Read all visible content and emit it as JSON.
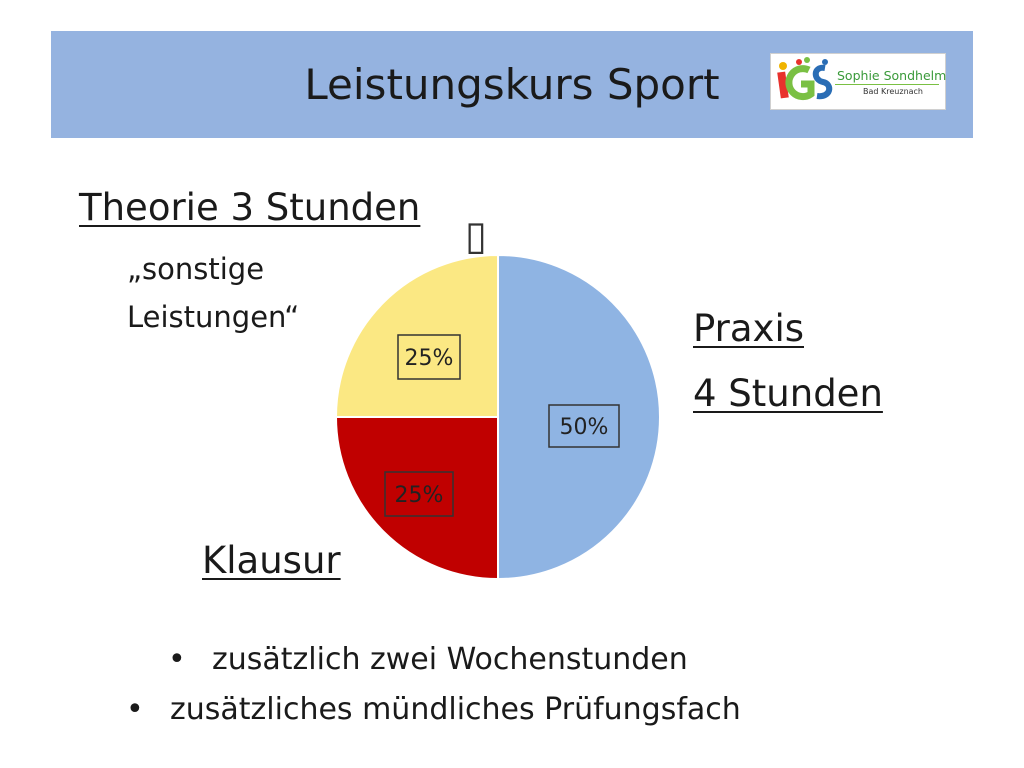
{
  "header": {
    "title": "Leistungskurs Sport"
  },
  "logo": {
    "name": "Sophie Sondhelm",
    "place": "Bad Kreuznach",
    "letters": "IGS"
  },
  "labels": {
    "theorie": "Theorie 3 Stunden",
    "sonstige_line1": "„sonstige",
    "sonstige_line2": "Leistungen“",
    "praxis_line1": "Praxis",
    "praxis_line2": "4 Stunden",
    "klausur": "Klausur",
    "placeholder_glyph": "▯"
  },
  "chart_data": {
    "type": "pie",
    "slices": [
      {
        "label": "Praxis",
        "value": 50,
        "display": "50%",
        "color": "#8fb4e3"
      },
      {
        "label": "Klausur",
        "value": 25,
        "display": "25%",
        "color": "#c00000"
      },
      {
        "label": "sonstige Leistungen",
        "value": 25,
        "display": "25%",
        "color": "#fbe883"
      }
    ]
  },
  "bullets": [
    "zusätzlich  zwei Wochenstunden",
    "zusätzliches mündliches Prüfungsfach"
  ]
}
